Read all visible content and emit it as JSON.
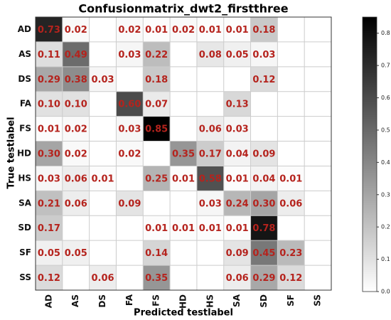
{
  "chart_data": {
    "type": "heatmap",
    "title": "Confusionmatrix_dwt2_firstthree",
    "xlabel": "Predicted testlabel",
    "ylabel": "True testlabel",
    "x_categories": [
      "AD",
      "AS",
      "DS",
      "FA",
      "FS",
      "HD",
      "HS",
      "SA",
      "SD",
      "SF",
      "SS"
    ],
    "y_categories": [
      "AD",
      "AS",
      "DS",
      "FA",
      "FS",
      "HD",
      "HS",
      "SA",
      "SD",
      "SF",
      "SS"
    ],
    "values": [
      [
        0.73,
        0.02,
        null,
        0.02,
        0.01,
        0.02,
        0.01,
        0.01,
        0.18,
        null,
        null
      ],
      [
        0.11,
        0.49,
        null,
        0.03,
        0.22,
        null,
        0.08,
        0.05,
        0.03,
        null,
        null
      ],
      [
        0.29,
        0.38,
        0.03,
        null,
        0.18,
        null,
        null,
        null,
        0.12,
        null,
        null
      ],
      [
        0.1,
        0.1,
        null,
        0.6,
        0.07,
        null,
        null,
        0.13,
        null,
        null,
        null
      ],
      [
        0.01,
        0.02,
        null,
        0.03,
        0.85,
        null,
        0.06,
        0.03,
        null,
        null,
        null
      ],
      [
        0.3,
        0.02,
        null,
        0.02,
        null,
        0.35,
        0.17,
        0.04,
        0.09,
        null,
        null
      ],
      [
        0.03,
        0.06,
        0.01,
        null,
        0.25,
        0.01,
        0.58,
        0.01,
        0.04,
        0.01,
        null
      ],
      [
        0.21,
        0.06,
        null,
        0.09,
        null,
        null,
        0.03,
        0.24,
        0.3,
        0.06,
        null
      ],
      [
        0.17,
        null,
        null,
        null,
        0.01,
        0.01,
        0.01,
        0.01,
        0.78,
        null,
        null
      ],
      [
        0.05,
        0.05,
        null,
        null,
        0.14,
        null,
        null,
        0.09,
        0.45,
        0.23,
        null
      ],
      [
        0.12,
        null,
        0.06,
        null,
        0.35,
        null,
        null,
        0.06,
        0.29,
        0.12,
        null
      ]
    ],
    "value_labels": [
      [
        "0.73",
        "0.02",
        null,
        "0.02",
        "0.01",
        "0.02",
        "0.01",
        "0.01",
        "0.18",
        null,
        null
      ],
      [
        "0.11",
        "0.49",
        null,
        "0.03",
        "0.22",
        null,
        "0.08",
        "0.05",
        "0.03",
        null,
        null
      ],
      [
        "0.29",
        "0.38",
        "0.03",
        null,
        "0.18",
        null,
        null,
        null,
        "0.12",
        null,
        null
      ],
      [
        "0.10",
        "0.10",
        null,
        "0.60",
        "0.07",
        null,
        null,
        "0.13",
        null,
        null,
        null
      ],
      [
        "0.01",
        "0.02",
        null,
        "0.03",
        "0.85",
        null,
        "0.06",
        "0.03",
        null,
        null,
        null
      ],
      [
        "0.30",
        "0.02",
        null,
        "0.02",
        null,
        "0.35",
        "0.17",
        "0.04",
        "0.09",
        null,
        null
      ],
      [
        "0.03",
        "0.06",
        "0.01",
        null,
        "0.25",
        "0.01",
        "0.58",
        "0.01",
        "0.04",
        "0.01",
        null
      ],
      [
        "0.21",
        "0.06",
        null,
        "0.09",
        null,
        null,
        "0.03",
        "0.24",
        "0.30",
        "0.06",
        null
      ],
      [
        "0.17",
        null,
        null,
        null,
        "0.01",
        "0.01",
        "0.01",
        "0.01",
        "0.78",
        null,
        null
      ],
      [
        "0.05",
        "0.05",
        null,
        null,
        "0.14",
        null,
        null,
        "0.09",
        "0.45",
        "0.23",
        null
      ],
      [
        "0.12",
        null,
        "0.06",
        null,
        "0.35",
        null,
        null,
        "0.06",
        "0.29",
        "0.12",
        null
      ]
    ],
    "colormap": [
      "#ffffff",
      "#000000"
    ],
    "label_color": "#b5231d",
    "clim": [
      0,
      0.85
    ],
    "cticks": [
      {
        "value": 0,
        "label": "0.0"
      },
      0.1,
      0.2,
      0.3,
      0.4,
      0.5,
      0.6,
      0.7,
      0.8
    ]
  }
}
